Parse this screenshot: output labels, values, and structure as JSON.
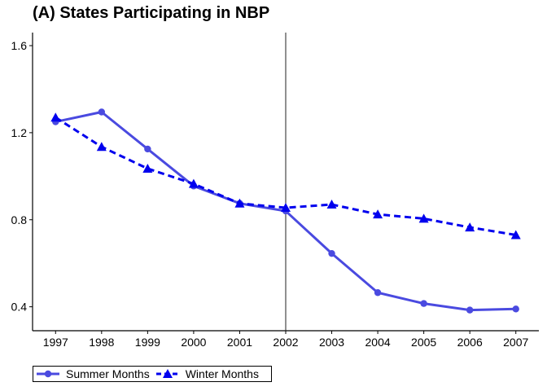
{
  "chart_data": {
    "type": "line",
    "title": "(A) States Participating in NBP",
    "xlabel": "",
    "ylabel": "",
    "x": [
      1997,
      1998,
      1999,
      2000,
      2001,
      2002,
      2003,
      2004,
      2005,
      2006,
      2007
    ],
    "x_tick_labels": [
      "1997",
      "1998",
      "1999",
      "2000",
      "2001",
      "2002",
      "2003",
      "2004",
      "2005",
      "2006",
      "2007"
    ],
    "y_ticks": [
      0.4,
      0.8,
      1.2,
      1.6
    ],
    "y_tick_labels": [
      "0.4",
      "0.8",
      "1.2",
      "1.6"
    ],
    "xlim": [
      1996.5,
      2007.5
    ],
    "ylim": [
      0.29,
      1.66
    ],
    "reference_line_x": 2002,
    "grid": false,
    "legend_position": "bottom-left",
    "series": [
      {
        "name": "Summer Months",
        "color": "#4a4ae0",
        "line_style": "solid",
        "marker": "circle",
        "values": [
          1.25,
          1.295,
          1.125,
          0.955,
          0.875,
          0.84,
          0.645,
          0.465,
          0.415,
          0.385,
          0.39
        ]
      },
      {
        "name": "Winter Months",
        "color": "#0000ee",
        "line_style": "dashed",
        "marker": "triangle",
        "values": [
          1.27,
          1.135,
          1.035,
          0.965,
          0.875,
          0.855,
          0.87,
          0.825,
          0.805,
          0.765,
          0.73
        ]
      }
    ]
  }
}
